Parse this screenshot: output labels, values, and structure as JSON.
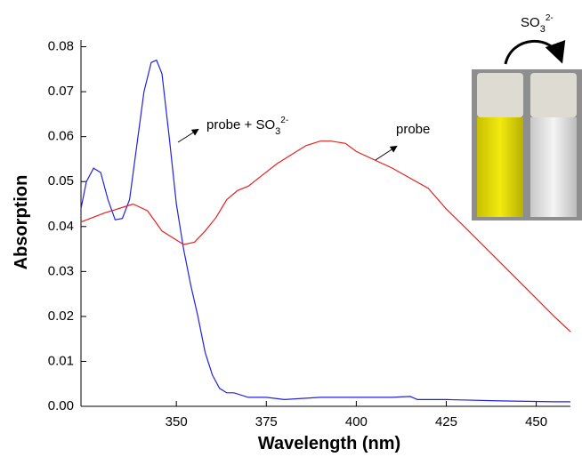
{
  "chart_data": {
    "type": "line",
    "x_label": "Wavelength (nm)",
    "y_label": "Absorption",
    "xlim": [
      323.5,
      459.5
    ],
    "ylim": [
      0,
      0.0815
    ],
    "xticks": [
      350,
      375,
      400,
      425,
      450
    ],
    "yticks": [
      {
        "value": 0,
        "label": "0.00"
      },
      0.01,
      0.02,
      0.03,
      0.04,
      0.05,
      0.06,
      0.07,
      0.08
    ],
    "series": [
      {
        "color": "#2222dd",
        "x": [
          323.5,
          325,
          327,
          329,
          331,
          333,
          335,
          337,
          339,
          341,
          343,
          344.5,
          346,
          348,
          350,
          352,
          354,
          356,
          358,
          360,
          362,
          364,
          366,
          370,
          375,
          380,
          390,
          400,
          410,
          415,
          417,
          425,
          440,
          455,
          459.5
        ],
        "values": [
          0.044,
          0.05,
          0.053,
          0.052,
          0.046,
          0.0415,
          0.0418,
          0.046,
          0.058,
          0.07,
          0.0765,
          0.077,
          0.074,
          0.06,
          0.045,
          0.035,
          0.027,
          0.02,
          0.012,
          0.007,
          0.004,
          0.003,
          0.003,
          0.002,
          0.002,
          0.0015,
          0.002,
          0.002,
          0.002,
          0.0022,
          0.0015,
          0.0015,
          0.0012,
          0.001,
          0.001
        ]
      },
      {
        "color": "#e8201e",
        "x": [
          323.5,
          330,
          336,
          338,
          342,
          346,
          349,
          352,
          355,
          358,
          361,
          364,
          367,
          370,
          374,
          378,
          382,
          386,
          390,
          393,
          397,
          400,
          410,
          420,
          425,
          430,
          440,
          450,
          455,
          459.5
        ],
        "values": [
          0.041,
          0.043,
          0.0445,
          0.045,
          0.0435,
          0.039,
          0.0375,
          0.036,
          0.0365,
          0.039,
          0.042,
          0.046,
          0.048,
          0.049,
          0.0515,
          0.054,
          0.056,
          0.058,
          0.059,
          0.059,
          0.0585,
          0.0567,
          0.053,
          0.0485,
          0.0439,
          0.04,
          0.032,
          0.024,
          0.02,
          0.0166
        ]
      }
    ],
    "annotations": [
      {
        "text": "probe + SO",
        "sub": "3",
        "sup": "2-"
      },
      {
        "text": "probe"
      }
    ],
    "inset_label": {
      "text": "SO",
      "sub": "3",
      "sup": "2-"
    }
  }
}
